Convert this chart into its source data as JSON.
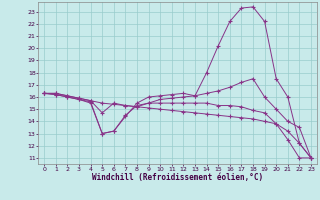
{
  "xlabel": "Windchill (Refroidissement éolien,°C)",
  "bg_color": "#c8eaea",
  "line_color": "#883388",
  "grid_color": "#99cccc",
  "xlim": [
    -0.5,
    23.5
  ],
  "ylim": [
    10.5,
    23.8
  ],
  "xticks": [
    0,
    1,
    2,
    3,
    4,
    5,
    6,
    7,
    8,
    9,
    10,
    11,
    12,
    13,
    14,
    15,
    16,
    17,
    18,
    19,
    20,
    21,
    22,
    23
  ],
  "yticks": [
    11,
    12,
    13,
    14,
    15,
    16,
    17,
    18,
    19,
    20,
    21,
    22,
    23
  ],
  "line1_x": [
    0,
    1,
    2,
    3,
    4,
    5,
    6,
    7,
    8,
    9,
    10,
    11,
    12,
    13,
    14,
    15,
    16,
    17,
    18,
    19,
    20,
    21,
    22,
    23
  ],
  "line1_y": [
    16.3,
    16.3,
    16.1,
    15.9,
    15.7,
    15.5,
    15.4,
    15.3,
    15.2,
    15.1,
    15.0,
    14.9,
    14.8,
    14.7,
    14.6,
    14.5,
    14.4,
    14.3,
    14.2,
    14.0,
    13.8,
    13.2,
    12.2,
    11.0
  ],
  "line2_x": [
    0,
    1,
    2,
    3,
    4,
    5,
    6,
    7,
    8,
    9,
    10,
    11,
    12,
    13,
    14,
    15,
    16,
    17,
    18,
    19,
    20,
    21,
    22,
    23
  ],
  "line2_y": [
    16.3,
    16.2,
    16.0,
    15.8,
    15.6,
    13.0,
    13.2,
    14.4,
    15.5,
    16.0,
    16.1,
    16.2,
    16.3,
    16.1,
    18.0,
    20.2,
    22.2,
    23.3,
    23.4,
    22.2,
    17.5,
    16.0,
    12.2,
    11.0
  ],
  "line3_x": [
    0,
    1,
    2,
    3,
    4,
    5,
    6,
    7,
    8,
    9,
    10,
    11,
    12,
    13,
    14,
    15,
    16,
    17,
    18,
    19,
    20,
    21,
    22,
    23
  ],
  "line3_y": [
    16.3,
    16.3,
    16.1,
    15.9,
    15.7,
    14.7,
    15.5,
    15.3,
    15.2,
    15.5,
    15.8,
    15.9,
    16.0,
    16.1,
    16.3,
    16.5,
    16.8,
    17.2,
    17.5,
    16.0,
    15.0,
    14.0,
    13.5,
    11.0
  ],
  "line4_x": [
    0,
    1,
    2,
    3,
    4,
    5,
    6,
    7,
    8,
    9,
    10,
    11,
    12,
    13,
    14,
    15,
    16,
    17,
    18,
    19,
    20,
    21,
    22,
    23
  ],
  "line4_y": [
    16.3,
    16.2,
    16.0,
    15.8,
    15.5,
    13.0,
    13.2,
    14.5,
    15.3,
    15.5,
    15.5,
    15.5,
    15.5,
    15.5,
    15.5,
    15.3,
    15.3,
    15.2,
    14.9,
    14.7,
    13.8,
    12.5,
    11.0,
    11.0
  ]
}
